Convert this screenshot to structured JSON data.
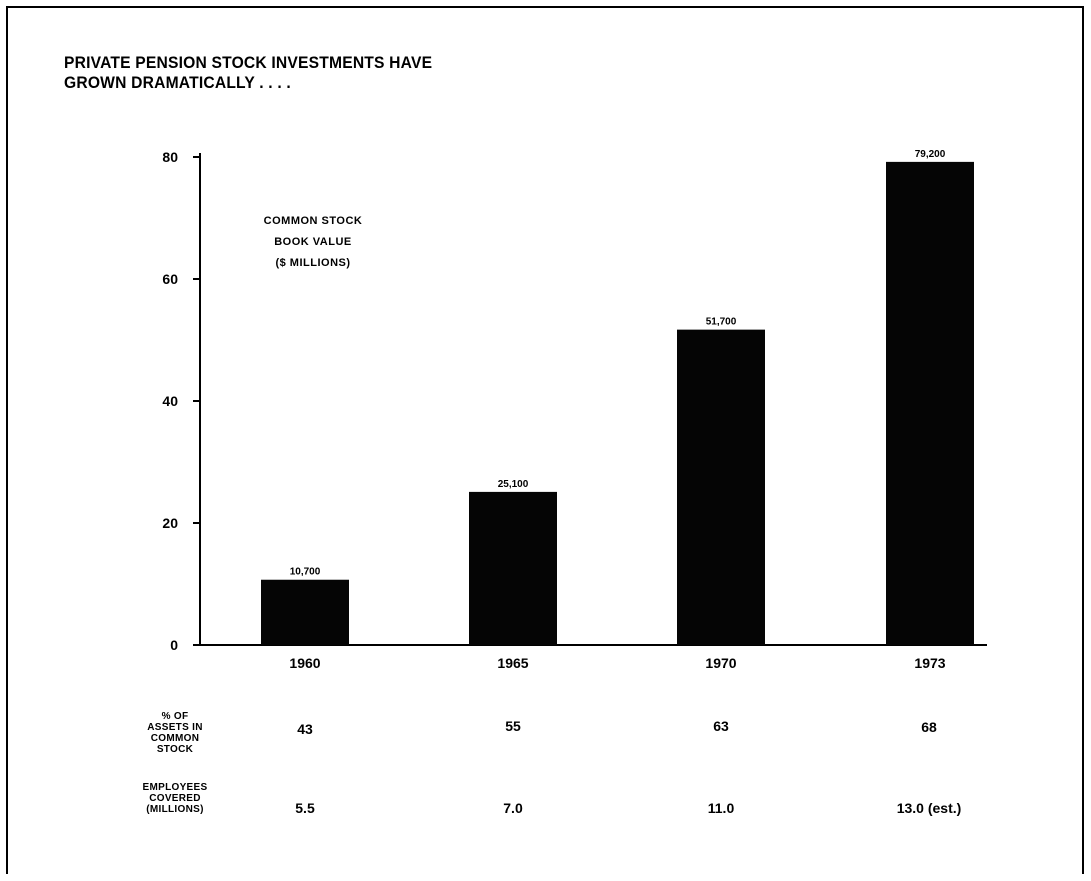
{
  "title_line1": "PRIVATE PENSION STOCK INVESTMENTS HAVE",
  "title_line2": "GROWN DRAMATICALLY . . . .",
  "chart_data": {
    "type": "bar",
    "categories": [
      "1960",
      "1965",
      "1970",
      "1973"
    ],
    "values": [
      10700,
      25100,
      51700,
      79200
    ],
    "value_labels": [
      "10,700",
      "25,100",
      "51,700",
      "79,200"
    ],
    "yticks": [
      0,
      20,
      40,
      60,
      80
    ],
    "ylim": [
      0,
      80000
    ],
    "y_tick_unit": 1000,
    "legend_lines": [
      "COMMON STOCK",
      "BOOK VALUE",
      "($ MILLIONS)"
    ],
    "grid": false,
    "bar_color": "#050505"
  },
  "table": {
    "rows": [
      {
        "label": "% OF\nASSETS IN\nCOMMON\nSTOCK",
        "values": [
          "43",
          "55",
          "63",
          "68"
        ]
      },
      {
        "label": "EMPLOYEES\nCOVERED\n(MILLIONS)",
        "values": [
          "5.5",
          "7.0",
          "11.0",
          "13.0 (est.)"
        ]
      }
    ]
  }
}
